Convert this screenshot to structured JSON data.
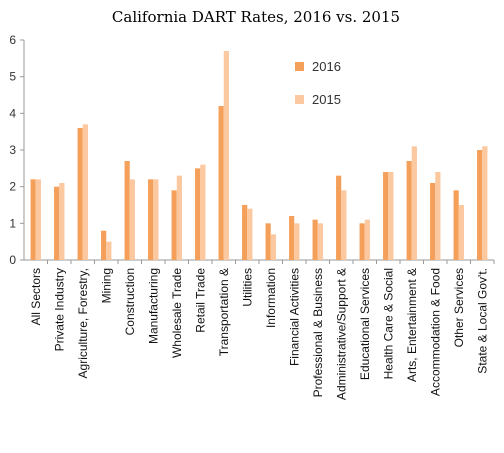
{
  "chart_data": {
    "type": "bar",
    "title": "California DART Rates, 2016 vs. 2015",
    "categories": [
      "All Sectors",
      "Private Industry",
      "Agriculture, Forestry,",
      "Mining",
      "Construction",
      "Manufacturing",
      "Wholesale Trade",
      "Retail Trade",
      "Transportation &",
      "Utilities",
      "Information",
      "Financial Activities",
      "Professional & Business",
      "Administrative/Support &",
      "Educational Services",
      "Health Care & Social",
      "Arts, Entertainment &",
      "Accommodation & Food",
      "Other Services",
      "State & Local Gov't."
    ],
    "series": [
      {
        "name": "2016",
        "color": "#F5A05A",
        "values": [
          2.2,
          2.0,
          3.6,
          0.8,
          2.7,
          2.2,
          1.9,
          2.5,
          4.2,
          1.5,
          1.0,
          1.2,
          1.1,
          2.3,
          1.0,
          2.4,
          2.7,
          2.1,
          1.9,
          3.0
        ]
      },
      {
        "name": "2015",
        "color": "#FBC8A0",
        "values": [
          2.2,
          2.1,
          3.7,
          0.5,
          2.2,
          2.2,
          2.3,
          2.6,
          5.7,
          1.4,
          0.7,
          1.0,
          1.0,
          1.9,
          1.1,
          2.4,
          3.1,
          2.4,
          1.5,
          3.1
        ]
      }
    ],
    "ylim": [
      0,
      6
    ],
    "yticks": [
      0,
      1,
      2,
      3,
      4,
      5,
      6
    ],
    "grid": false,
    "legend_position": "top-right"
  }
}
